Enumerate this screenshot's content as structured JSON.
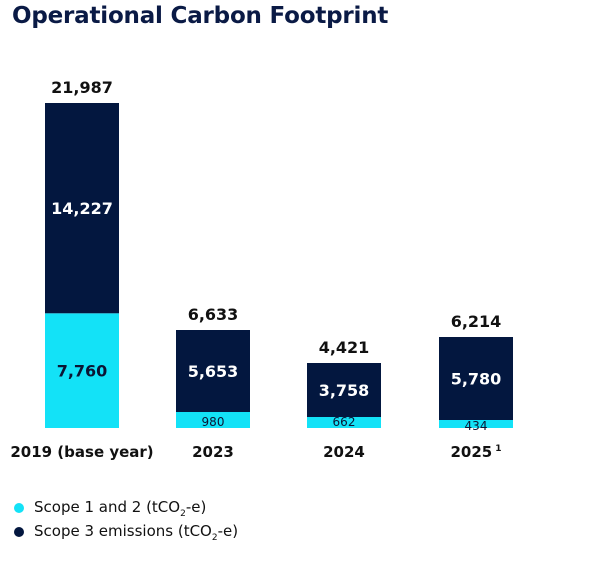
{
  "chart_data": {
    "type": "bar",
    "stacked": true,
    "title": "Operational Carbon Footprint",
    "xlabel": "",
    "ylabel": "",
    "ylim": [
      0,
      22000
    ],
    "grid": false,
    "categories": [
      "2019 (base year)",
      "2023",
      "2024",
      "2025"
    ],
    "category_superscripts": [
      "",
      "",
      "",
      "1"
    ],
    "totals": [
      21987,
      6633,
      4421,
      6214
    ],
    "total_labels": [
      "21,987",
      "6,633",
      "4,421",
      "6,214"
    ],
    "series": [
      {
        "name": "Scope 1 and 2 (tCO2-e)",
        "color": "#13e2f7",
        "values": [
          7760,
          980,
          662,
          434
        ],
        "labels": [
          "7,760",
          "980",
          "662",
          "434"
        ],
        "label_color": "#0b1534"
      },
      {
        "name": "Scope 3 emissions (tCO2-e)",
        "color": "#03173f",
        "values": [
          14227,
          5653,
          3758,
          5780
        ],
        "labels": [
          "14,227",
          "5,653",
          "3,758",
          "5,780"
        ],
        "label_color": "#ffffff"
      }
    ],
    "legend_position": "bottom-left"
  },
  "legend": {
    "items": [
      {
        "prefix": "Scope 1 and 2 (tCO",
        "sub": "2",
        "suffix": "-e)",
        "color": "#13e2f7"
      },
      {
        "prefix": "Scope 3 emissions (tCO",
        "sub": "2",
        "suffix": "-e)",
        "color": "#03173f"
      }
    ]
  }
}
